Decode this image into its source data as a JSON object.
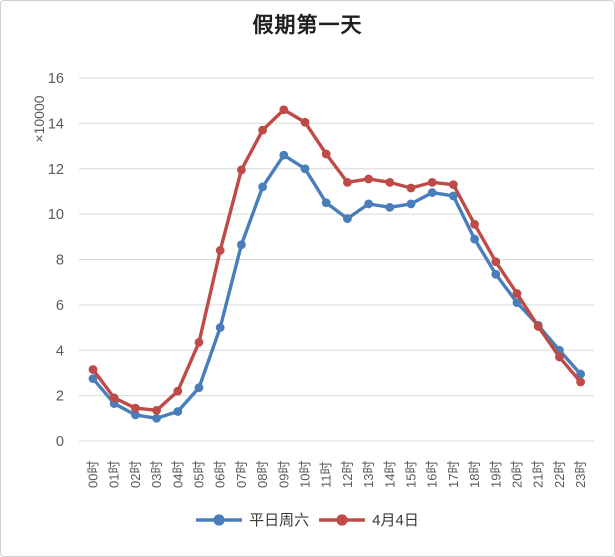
{
  "chart_data": {
    "type": "line",
    "title": "假期第一天",
    "ylabel": "×10000",
    "categories": [
      "00时",
      "01时",
      "02时",
      "03时",
      "04时",
      "05时",
      "06时",
      "07时",
      "08时",
      "09时",
      "10时",
      "11时",
      "12时",
      "13时",
      "14时",
      "15时",
      "16时",
      "17时",
      "18时",
      "19时",
      "20时",
      "21时",
      "22时",
      "23时"
    ],
    "series": [
      {
        "name": "平日周六",
        "color": "#4A7EBB",
        "values": [
          2.75,
          1.65,
          1.15,
          1.0,
          1.3,
          2.35,
          5.0,
          8.65,
          11.2,
          12.6,
          12.0,
          10.5,
          9.8,
          10.45,
          10.3,
          10.45,
          10.95,
          10.8,
          8.9,
          7.35,
          6.1,
          5.1,
          4.0,
          2.95
        ]
      },
      {
        "name": "4月4日",
        "color": "#BE4B48",
        "values": [
          3.15,
          1.9,
          1.45,
          1.35,
          2.2,
          4.35,
          8.4,
          11.95,
          13.7,
          14.6,
          14.05,
          12.65,
          11.4,
          11.55,
          11.4,
          11.15,
          11.4,
          11.3,
          9.55,
          7.9,
          6.5,
          5.05,
          3.7,
          2.6
        ]
      }
    ],
    "ylim": [
      0,
      16
    ],
    "ytick_step": 2,
    "grid": "horizontal",
    "legend_position": "bottom",
    "colors": {
      "gridline": "#d9d9d9",
      "tick_text": "#595959",
      "title_text": "#1f1f1f",
      "legend_text": "#3a3a3a"
    }
  }
}
